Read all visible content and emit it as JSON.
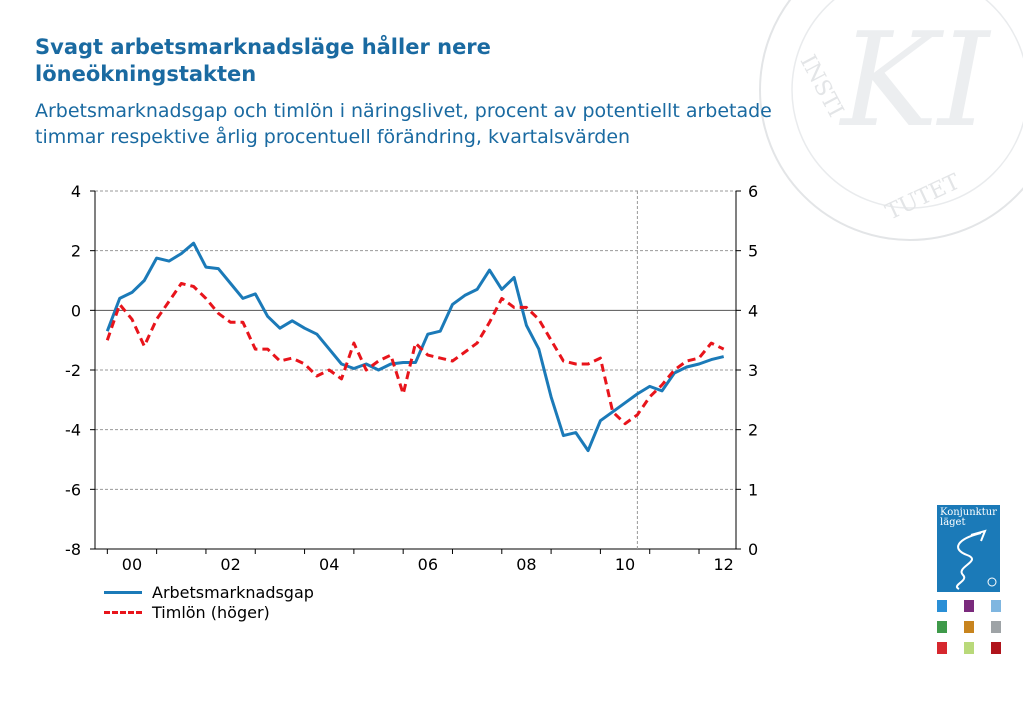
{
  "title": "Svagt arbetsmarknadsläge håller nere löneökningstakten",
  "subtitle": "Arbetsmarknadsgap och timlön i näringslivet, procent av potentiellt arbetade timmar respektive årlig procentuell förändring, kvartalsvärden",
  "watermark_text": "KI INSTITUTET",
  "report_cover": {
    "title_line1": "Konjunktur",
    "title_line2": "läget",
    "color": "#1b7ab8"
  },
  "thumbnail_colors": [
    "#2a8fd6",
    "#7a2a7c",
    "#7fb6e0",
    "#3f9a4a",
    "#c8841e",
    "#9ea3a6",
    "#d6282e",
    "#b9d97a",
    "#b0141c"
  ],
  "chart_data": {
    "type": "line",
    "x_tick_labels": [
      "00",
      "02",
      "04",
      "06",
      "08",
      "10",
      "12"
    ],
    "y_left": {
      "ticks": [
        "4",
        "2",
        "0",
        "-2",
        "-4",
        "-6",
        "-8"
      ],
      "ylim": [
        -8,
        4
      ]
    },
    "y_right": {
      "ticks": [
        "6",
        "5",
        "4",
        "3",
        "2",
        "1",
        "0"
      ],
      "ylim": [
        0,
        6
      ]
    },
    "x_range": [
      1999.75,
      2012.75
    ],
    "forecast_divider_x": 2010.75,
    "gridlines": true,
    "legend_position": "bottom-left",
    "series": [
      {
        "name": "Arbetsmarknadsgap",
        "axis": "left",
        "color": "#1b7ab8",
        "style": "solid",
        "x": [
          2000.0,
          2000.25,
          2000.5,
          2000.75,
          2001.0,
          2001.25,
          2001.5,
          2001.75,
          2002.0,
          2002.25,
          2002.5,
          2002.75,
          2003.0,
          2003.25,
          2003.5,
          2003.75,
          2004.0,
          2004.25,
          2004.5,
          2004.75,
          2005.0,
          2005.25,
          2005.5,
          2005.75,
          2006.0,
          2006.25,
          2006.5,
          2006.75,
          2007.0,
          2007.25,
          2007.5,
          2007.75,
          2008.0,
          2008.25,
          2008.5,
          2008.75,
          2009.0,
          2009.25,
          2009.5,
          2009.75,
          2010.0,
          2010.25,
          2010.5,
          2010.75,
          2011.0,
          2011.25,
          2011.5,
          2011.75,
          2012.0,
          2012.25,
          2012.5
        ],
        "values": [
          -0.7,
          0.4,
          0.6,
          1.0,
          1.75,
          1.65,
          1.9,
          2.25,
          1.45,
          1.4,
          0.9,
          0.4,
          0.55,
          -0.2,
          -0.6,
          -0.35,
          -0.6,
          -0.8,
          -1.3,
          -1.8,
          -1.95,
          -1.8,
          -2.0,
          -1.8,
          -1.75,
          -1.75,
          -0.8,
          -0.7,
          0.2,
          0.5,
          0.7,
          1.35,
          0.7,
          1.1,
          -0.5,
          -1.3,
          -2.9,
          -4.2,
          -4.1,
          -4.7,
          -3.7,
          -3.4,
          -3.1,
          -2.8,
          -2.55,
          -2.7,
          -2.1,
          -1.9,
          -1.8,
          -1.65,
          -1.55
        ]
      },
      {
        "name": "Timlön  (höger)",
        "axis": "right",
        "color": "#e8141b",
        "style": "dashed",
        "x": [
          2000.0,
          2000.25,
          2000.5,
          2000.75,
          2001.0,
          2001.25,
          2001.5,
          2001.75,
          2002.0,
          2002.25,
          2002.5,
          2002.75,
          2003.0,
          2003.25,
          2003.5,
          2003.75,
          2004.0,
          2004.25,
          2004.5,
          2004.75,
          2005.0,
          2005.25,
          2005.5,
          2005.75,
          2006.0,
          2006.25,
          2006.5,
          2006.75,
          2007.0,
          2007.25,
          2007.5,
          2007.75,
          2008.0,
          2008.25,
          2008.5,
          2008.75,
          2009.0,
          2009.25,
          2009.5,
          2009.75,
          2010.0,
          2010.25,
          2010.5,
          2010.75,
          2011.0,
          2011.25,
          2011.5,
          2011.75,
          2012.0,
          2012.25,
          2012.5
        ],
        "values": [
          3.5,
          4.1,
          3.85,
          3.4,
          3.85,
          4.15,
          4.45,
          4.4,
          4.2,
          3.95,
          3.8,
          3.8,
          3.35,
          3.35,
          3.15,
          3.2,
          3.1,
          2.9,
          3.0,
          2.85,
          3.45,
          3.0,
          3.15,
          3.25,
          2.6,
          3.45,
          3.25,
          3.2,
          3.15,
          3.3,
          3.45,
          3.8,
          4.2,
          4.05,
          4.05,
          3.85,
          3.5,
          3.15,
          3.1,
          3.1,
          3.2,
          2.3,
          2.1,
          2.25,
          2.55,
          2.75,
          3.0,
          3.15,
          3.2,
          3.45,
          3.35
        ]
      }
    ]
  }
}
